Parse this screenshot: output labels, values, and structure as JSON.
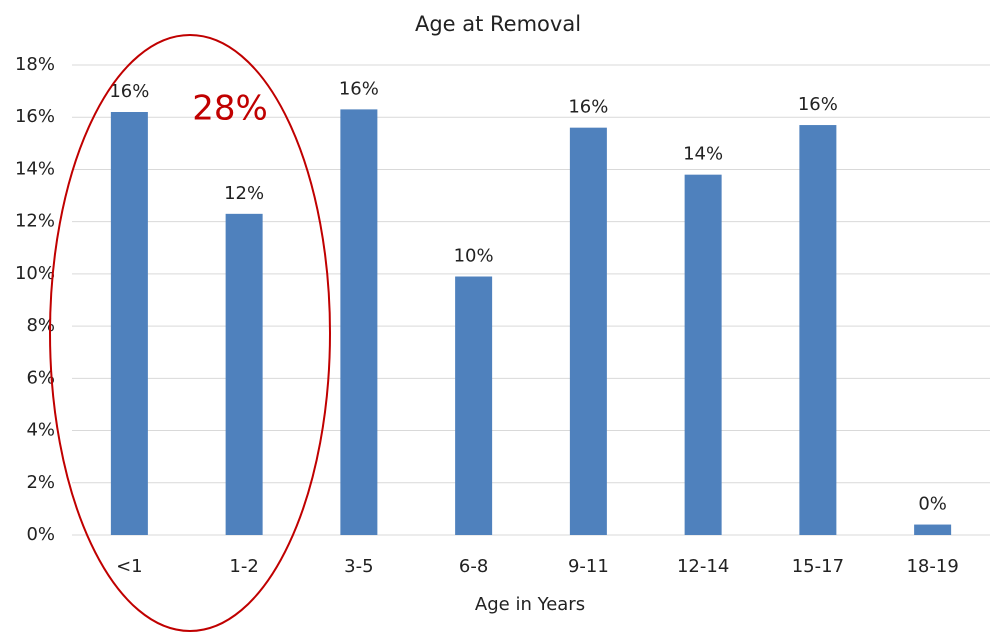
{
  "chart_data": {
    "type": "bar",
    "title": "Age at Removal",
    "x_label": "Age in Years",
    "categories": [
      "<1",
      "1-2",
      "3-5",
      "6-8",
      "9-11",
      "12-14",
      "15-17",
      "18-19"
    ],
    "values": [
      16.2,
      12.3,
      16.3,
      9.9,
      15.6,
      13.8,
      15.7,
      0.4
    ],
    "value_labels": [
      "16%",
      "12%",
      "16%",
      "10%",
      "16%",
      "14%",
      "16%",
      "0%"
    ],
    "color": "#4f81bd",
    "ylim": [
      0,
      18
    ],
    "yticks": [
      {
        "value": 0,
        "label": "0%"
      },
      {
        "value": 2,
        "label": "2%"
      },
      {
        "value": 4,
        "label": "4%"
      },
      {
        "value": 6,
        "label": "6%"
      },
      {
        "value": 8,
        "label": "8%"
      },
      {
        "value": 10,
        "label": "10%"
      },
      {
        "value": 12,
        "label": "12%"
      },
      {
        "value": 14,
        "label": "14%"
      },
      {
        "value": 16,
        "label": "16%"
      },
      {
        "value": 18,
        "label": "18%"
      }
    ],
    "grid": true,
    "annotations": [
      "28%"
    ]
  }
}
